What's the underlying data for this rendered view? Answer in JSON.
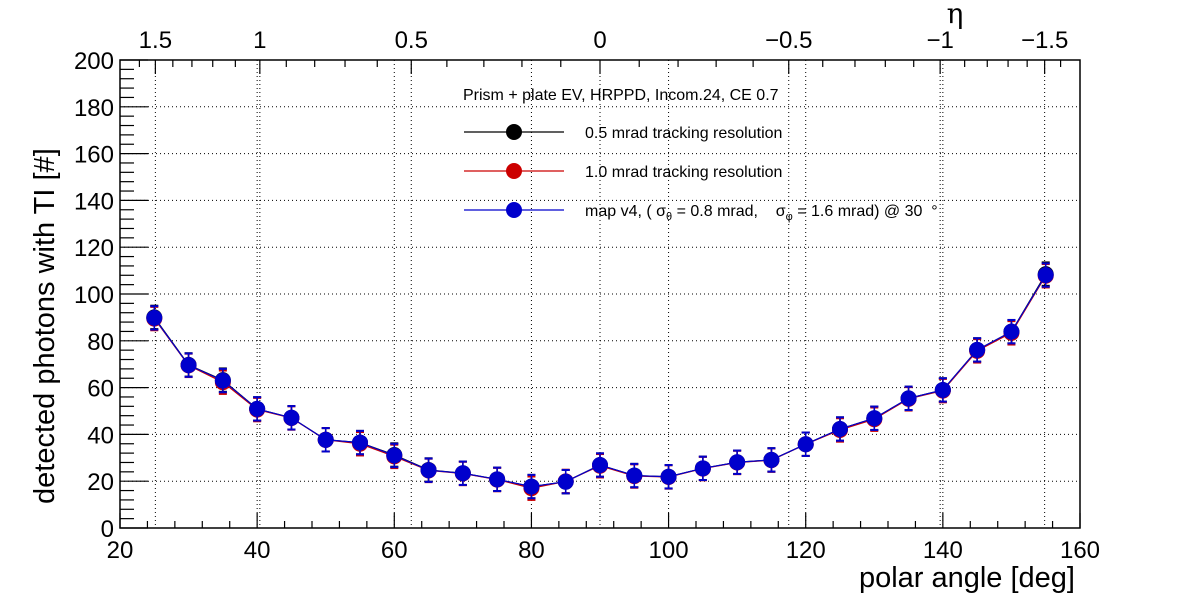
{
  "chart_data": {
    "type": "line",
    "xlabel": "polar angle [deg]",
    "ylabel": "detected photons with TI [#]",
    "xlim": [
      20,
      160
    ],
    "ylim": [
      0,
      200
    ],
    "x_ticks": [
      20,
      40,
      60,
      80,
      100,
      120,
      140,
      160
    ],
    "x_tick_labels": [
      "20",
      "40",
      "60",
      "80",
      "100",
      "120",
      "140",
      "160"
    ],
    "y_ticks": [
      0,
      20,
      40,
      60,
      80,
      100,
      120,
      140,
      160,
      180,
      200
    ],
    "y_tick_labels": [
      "0",
      "20",
      "40",
      "60",
      "80",
      "100",
      "120",
      "140",
      "160",
      "180",
      "200"
    ],
    "grid": true,
    "top_axis": {
      "label": "η",
      "ticks": [
        1.5,
        1,
        0.5,
        0,
        -0.5,
        -1,
        -1.5
      ],
      "tick_labels": [
        "1.5",
        "1",
        "0.5",
        "0",
        "−0.5",
        "−1",
        "−1.5"
      ]
    },
    "legend": {
      "placement": "top-center",
      "title": "Prism + plate EV, HRPPD, Incom.24, CE 0.7",
      "entries": [
        {
          "label": "0.5 mrad tracking resolution",
          "color": "#000000"
        },
        {
          "label": "1.0 mrad tracking resolution",
          "color": "#cc0000"
        },
        {
          "label_parts": [
            "map v4, ( σ",
            "θ",
            " = 0.8 mrad,    σ",
            "φ",
            " = 1.6 mrad) @ 30  °"
          ],
          "color": "#0000cc"
        }
      ]
    },
    "x": [
      25,
      30,
      35,
      40,
      45,
      50,
      55,
      60,
      65,
      70,
      75,
      80,
      85,
      90,
      95,
      100,
      105,
      110,
      115,
      120,
      125,
      130,
      135,
      140,
      145,
      150,
      155
    ],
    "series": [
      {
        "name": "0.5 mrad tracking resolution",
        "color": "#000000",
        "values": [
          90,
          69.7,
          63.2,
          50.9,
          47.1,
          37.7,
          36.5,
          31.2,
          24.8,
          23.4,
          20.8,
          17.7,
          19.8,
          26.9,
          22.4,
          21.9,
          25.5,
          28.1,
          29.1,
          35.8,
          42.3,
          46.9,
          55.4,
          59.0,
          76.1,
          83.9,
          108.5
        ],
        "errors": [
          5,
          5,
          5,
          5,
          5,
          5,
          5,
          5,
          5,
          5,
          5,
          5,
          5,
          5,
          5,
          5,
          5,
          5,
          5,
          5,
          5,
          5,
          5,
          5,
          5,
          5,
          5
        ]
      },
      {
        "name": "1.0 mrad tracking resolution",
        "color": "#cc0000",
        "values": [
          89.5,
          69.5,
          62.3,
          50.6,
          47.0,
          37.7,
          36.0,
          30.6,
          24.6,
          23.3,
          20.7,
          17.0,
          19.9,
          26.6,
          22.2,
          21.8,
          25.4,
          28.0,
          29.0,
          35.8,
          41.9,
          46.5,
          55.2,
          58.7,
          75.7,
          83.4,
          107.8
        ],
        "errors": [
          5,
          5,
          5,
          5,
          5,
          5,
          5,
          5,
          5,
          5,
          5,
          5,
          5,
          5,
          5,
          5,
          5,
          5,
          5,
          5,
          5,
          5,
          5,
          5,
          5,
          5,
          5
        ]
      },
      {
        "name": "map v4, ( σθ = 0.8 mrad, σφ = 1.6 mrad) @ 30 °",
        "color": "#0000cc",
        "values": [
          89.8,
          69.6,
          63.0,
          50.9,
          47.1,
          37.7,
          36.5,
          31.0,
          24.7,
          23.4,
          20.8,
          17.7,
          19.8,
          26.9,
          22.4,
          21.9,
          25.5,
          28.1,
          29.1,
          35.8,
          42.3,
          46.9,
          55.4,
          59.0,
          76.1,
          83.9,
          108.1
        ],
        "errors": [
          5,
          5,
          5,
          5,
          5,
          5,
          5,
          5,
          5,
          5,
          5,
          5,
          5,
          5,
          5,
          5,
          5,
          5,
          5,
          5,
          5,
          5,
          5,
          5,
          5,
          5,
          5
        ]
      }
    ]
  }
}
